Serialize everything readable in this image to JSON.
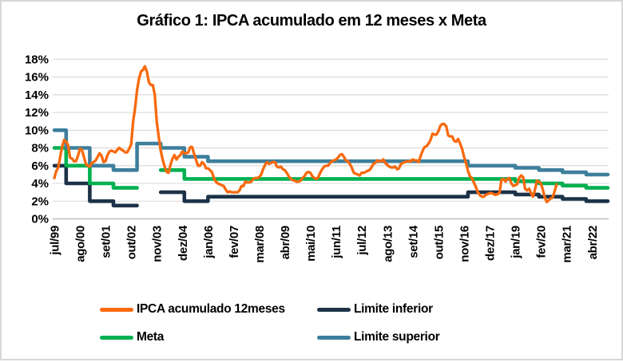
{
  "figure": {
    "background": "#FFFFFF",
    "border_color": "#D8D8D8",
    "gridline_color": "#D9D9D9",
    "axis_line_color": "#BFBFBF"
  },
  "chart_data": {
    "type": "line",
    "title": "Gráfico 1: IPCA acumulado em 12 meses x Meta",
    "xlabel": "",
    "ylabel": "",
    "ylim": [
      0,
      18
    ],
    "y_tick_step": 2,
    "y_tick_labels": [
      "0%",
      "2%",
      "4%",
      "6%",
      "8%",
      "10%",
      "12%",
      "14%",
      "16%",
      "18%"
    ],
    "x_axis": {
      "start": "jul/99",
      "end": "dez/22",
      "total_months": 282,
      "tick_every_months": 13,
      "tick_labels": [
        "jul/99",
        "ago/00",
        "set/01",
        "out/02",
        "nov/03",
        "dez/04",
        "jan/06",
        "fev/07",
        "mar/08",
        "abr/09",
        "mai/10",
        "jun/11",
        "jul/12",
        "ago/13",
        "set/14",
        "out/15",
        "nov/16",
        "dez/17",
        "jan/19",
        "fev/20",
        "mar/21",
        "abr/22"
      ]
    },
    "grid": "horizontal",
    "legend_position": "bottom",
    "series": [
      {
        "name": "IPCA acumulado 12meses",
        "color": "#F8690D",
        "kind": "monthly",
        "start": "jul/99",
        "end": "out/20",
        "values": [
          4.6,
          5.4,
          5.8,
          7.0,
          8.2,
          8.9,
          8.7,
          8.3,
          6.9,
          6.8,
          6.5,
          6.5,
          7.1,
          7.9,
          7.8,
          7.0,
          6.2,
          6.0,
          5.9,
          6.3,
          6.4,
          6.6,
          7.0,
          7.4,
          7.1,
          6.4,
          6.5,
          7.2,
          7.6,
          7.7,
          7.6,
          7.5,
          7.8,
          8.0,
          7.8,
          7.7,
          7.5,
          7.5,
          7.9,
          8.4,
          10.9,
          12.5,
          14.5,
          15.8,
          16.6,
          16.8,
          17.2,
          16.6,
          15.4,
          15.1,
          15.1,
          14.0,
          11.0,
          9.3,
          7.7,
          6.7,
          5.9,
          5.3,
          5.2,
          6.1,
          6.8,
          7.2,
          6.7,
          7.0,
          7.2,
          7.6,
          7.4,
          7.4,
          7.5,
          8.1,
          8.1,
          7.3,
          6.6,
          6.0,
          6.0,
          6.4,
          6.2,
          5.7,
          5.7,
          5.5,
          5.3,
          4.6,
          4.2,
          4.0,
          3.9,
          3.8,
          3.7,
          3.3,
          3.0,
          3.1,
          3.0,
          3.0,
          3.0,
          3.0,
          3.2,
          3.7,
          3.7,
          4.2,
          4.1,
          4.1,
          4.2,
          4.5,
          4.6,
          4.6,
          4.7,
          5.0,
          5.6,
          6.1,
          6.4,
          6.2,
          6.3,
          6.4,
          6.4,
          5.9,
          5.8,
          5.9,
          5.6,
          5.5,
          5.2,
          4.8,
          4.5,
          4.4,
          4.3,
          4.2,
          4.2,
          4.3,
          4.6,
          4.8,
          5.2,
          5.3,
          5.2,
          4.8,
          4.6,
          4.5,
          4.7,
          5.2,
          5.6,
          5.9,
          6.0,
          6.0,
          6.3,
          6.5,
          6.6,
          6.7,
          6.9,
          7.2,
          7.3,
          7.0,
          6.6,
          6.5,
          6.2,
          5.8,
          5.2,
          5.1,
          5.0,
          4.9,
          5.2,
          5.2,
          5.3,
          5.4,
          5.5,
          5.8,
          6.2,
          6.3,
          6.6,
          6.5,
          6.5,
          6.7,
          6.3,
          6.1,
          5.9,
          5.8,
          5.8,
          5.9,
          5.6,
          5.7,
          6.2,
          6.3,
          6.4,
          6.5,
          6.5,
          6.5,
          6.7,
          6.6,
          6.6,
          6.4,
          7.1,
          7.7,
          8.1,
          8.2,
          8.5,
          8.9,
          9.6,
          9.5,
          9.5,
          9.9,
          10.5,
          10.7,
          10.7,
          10.4,
          9.4,
          9.3,
          9.3,
          8.8,
          8.7,
          9.0,
          8.5,
          7.9,
          7.0,
          6.3,
          5.4,
          4.8,
          4.6,
          4.1,
          3.6,
          3.0,
          2.7,
          2.5,
          2.5,
          2.7,
          2.8,
          2.9,
          2.9,
          2.8,
          2.7,
          2.8,
          2.9,
          4.4,
          4.5,
          4.2,
          4.5,
          4.6,
          4.0,
          3.7,
          3.8,
          3.9,
          4.6,
          4.9,
          4.7,
          3.4,
          3.2,
          3.4,
          2.9,
          2.5,
          3.3,
          4.3,
          4.2,
          4.0,
          3.3,
          2.4,
          1.9,
          2.1,
          2.3,
          2.4,
          3.1,
          3.9
        ]
      },
      {
        "name": "Limite inferior",
        "color": "#1C3248",
        "kind": "step-yearly",
        "start_year": 1999,
        "yearly_values": [
          6,
          4,
          2,
          1.5,
          null,
          3.0,
          2.0,
          2.5,
          2.5,
          2.5,
          2.5,
          2.5,
          2.5,
          2.5,
          2.5,
          2.5,
          2.5,
          2.5,
          3.0,
          3.0,
          2.75,
          2.5,
          2.25,
          2.0
        ]
      },
      {
        "name": "Meta",
        "color": "#00B050",
        "kind": "step-yearly",
        "start_year": 1999,
        "yearly_values": [
          8,
          6,
          4,
          3.5,
          null,
          5.5,
          4.5,
          4.5,
          4.5,
          4.5,
          4.5,
          4.5,
          4.5,
          4.5,
          4.5,
          4.5,
          4.5,
          4.5,
          4.5,
          4.5,
          4.25,
          4.0,
          3.75,
          3.5
        ]
      },
      {
        "name": "Limite superior",
        "color": "#3D7F9C",
        "kind": "step-yearly",
        "start_year": 1999,
        "yearly_values": [
          10,
          8,
          6,
          5.5,
          8.5,
          8.0,
          7.0,
          6.5,
          6.5,
          6.5,
          6.5,
          6.5,
          6.5,
          6.5,
          6.5,
          6.5,
          6.5,
          6.5,
          6.0,
          6.0,
          5.75,
          5.5,
          5.25,
          5.0
        ]
      }
    ]
  }
}
